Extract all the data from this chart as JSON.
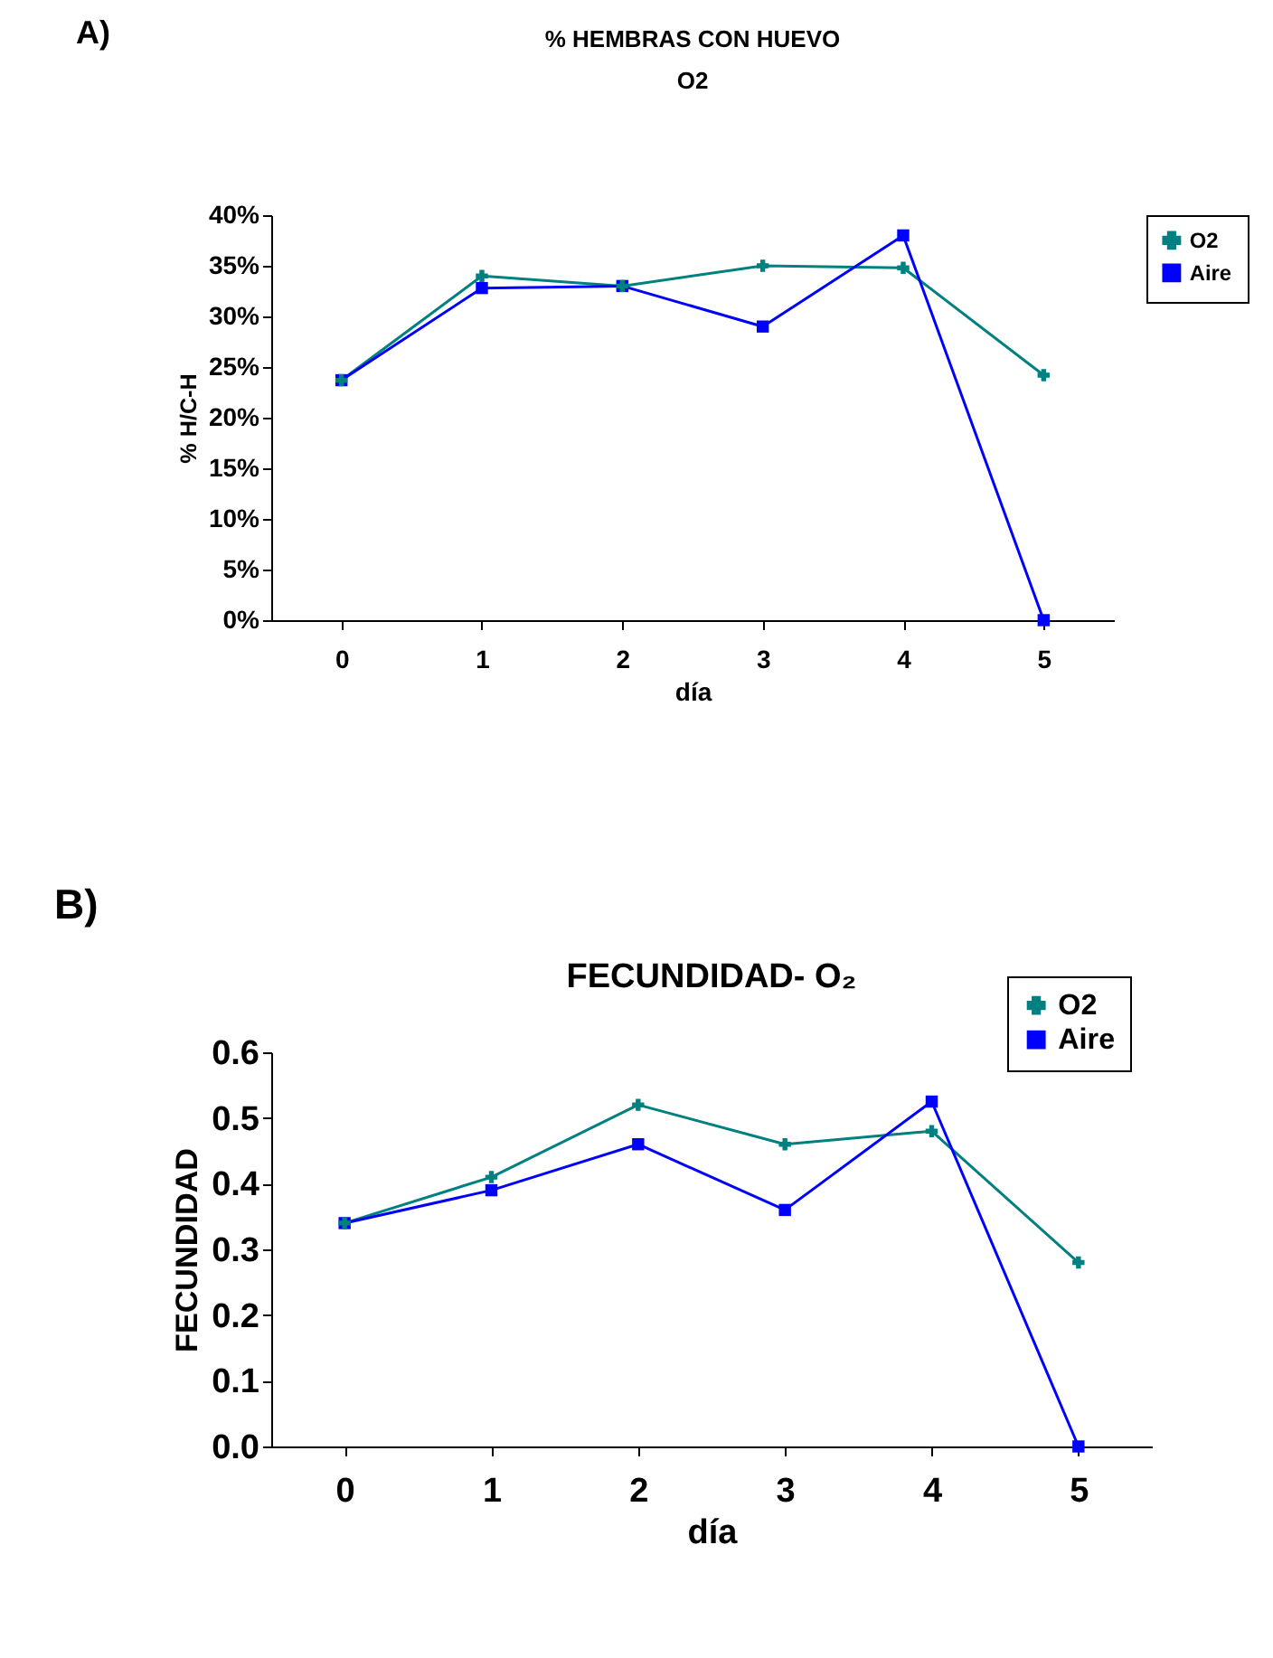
{
  "chart_data": [
    {
      "type": "line",
      "title": "% HEMBRAS CON HUEVO",
      "subtitle": "O2",
      "xlabel": "día",
      "ylabel": "% H/C-H",
      "annotations": [
        "A)"
      ],
      "categories": [
        "0",
        "1",
        "2",
        "3",
        "4",
        "5"
      ],
      "series": [
        {
          "name": "O2",
          "color": "#008080",
          "marker": "cross",
          "values": [
            23.7,
            34,
            33,
            35,
            34.8,
            24.2
          ]
        },
        {
          "name": "Aire",
          "color": "#0000ff",
          "marker": "square",
          "values": [
            23.7,
            32.8,
            33,
            29,
            38,
            0
          ]
        }
      ],
      "ylim": [
        0,
        40
      ],
      "yticks": [
        {
          "value": 0,
          "label": "0%"
        },
        {
          "value": 5,
          "label": "5%"
        },
        {
          "value": 10,
          "label": "10%"
        },
        {
          "value": 15,
          "label": "15%"
        },
        {
          "value": 20,
          "label": "20%"
        },
        {
          "value": 25,
          "label": "25%"
        },
        {
          "value": 30,
          "label": "30%"
        },
        {
          "value": 35,
          "label": "35%"
        },
        {
          "value": 40,
          "label": "40%"
        }
      ],
      "legend": "right"
    },
    {
      "type": "line",
      "title": "FECUNDIDAD- O₂",
      "xlabel": "día",
      "ylabel": "FECUNDIDAD",
      "annotations": [
        "B)"
      ],
      "categories": [
        "0",
        "1",
        "2",
        "3",
        "4",
        "5"
      ],
      "series": [
        {
          "name": "O2",
          "color": "#008080",
          "marker": "cross",
          "values": [
            0.34,
            0.41,
            0.52,
            0.46,
            0.48,
            0.28
          ]
        },
        {
          "name": "Aire",
          "color": "#0000ff",
          "marker": "square",
          "values": [
            0.34,
            0.39,
            0.46,
            0.36,
            0.525,
            0
          ]
        }
      ],
      "ylim": [
        0,
        0.6
      ],
      "yticks": [
        {
          "value": 0,
          "label": "0.0"
        },
        {
          "value": 0.1,
          "label": "0.1"
        },
        {
          "value": 0.2,
          "label": "0.2"
        },
        {
          "value": 0.3,
          "label": "0.3"
        },
        {
          "value": 0.4,
          "label": "0.4"
        },
        {
          "value": 0.5,
          "label": "0.5"
        },
        {
          "value": 0.6,
          "label": "0.6"
        }
      ],
      "legend": "top right"
    }
  ]
}
